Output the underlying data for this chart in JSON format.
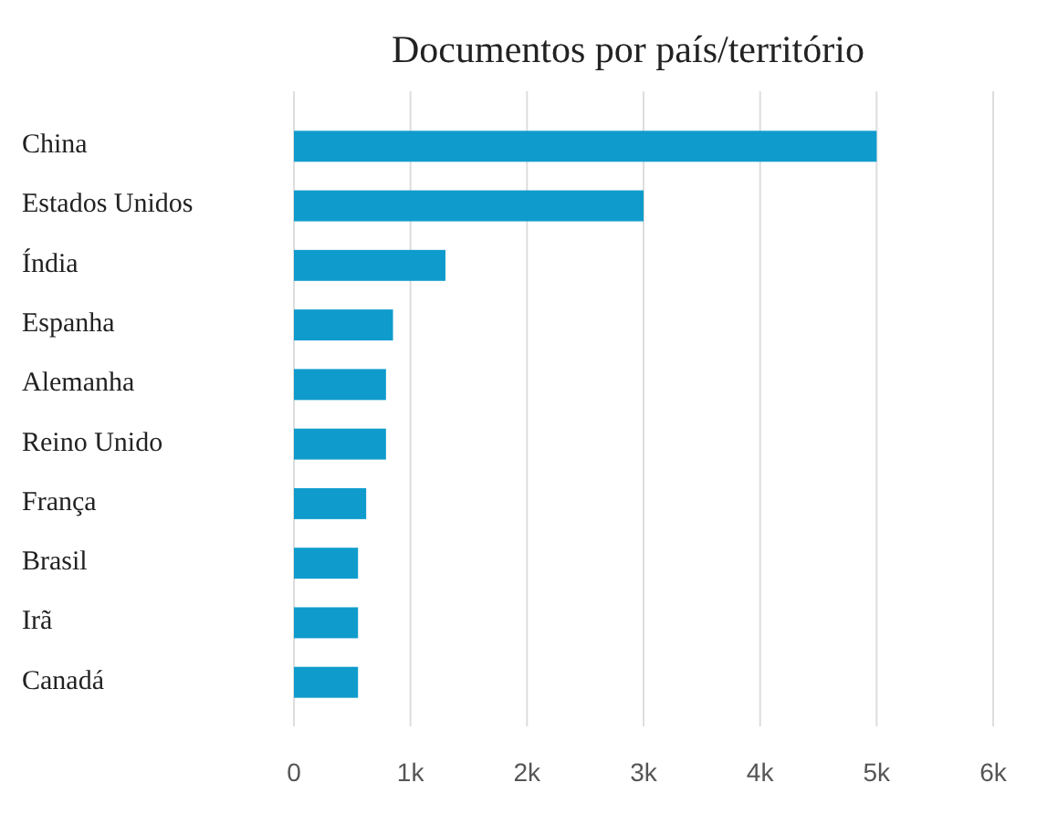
{
  "chart_data": {
    "type": "bar",
    "orientation": "horizontal",
    "title": "Documentos por país/território",
    "categories": [
      "China",
      "Estados Unidos",
      "Índia",
      "Espanha",
      "Alemanha",
      "Reino Unido",
      "França",
      "Brasil",
      "Irã",
      "Canadá"
    ],
    "values": [
      5000,
      3000,
      1300,
      850,
      790,
      790,
      620,
      550,
      550,
      550
    ],
    "color": "#0f9ccc",
    "xlim": [
      0,
      6000
    ],
    "xticks": [
      0,
      {
        "value": 1000,
        "label": "1k"
      },
      {
        "value": 2000,
        "label": "2k"
      },
      {
        "value": 3000,
        "label": "3k"
      },
      {
        "value": 4000,
        "label": "4k"
      },
      {
        "value": 5000,
        "label": "5k"
      },
      {
        "value": 6000,
        "label": "6k"
      }
    ],
    "grid": "x"
  }
}
